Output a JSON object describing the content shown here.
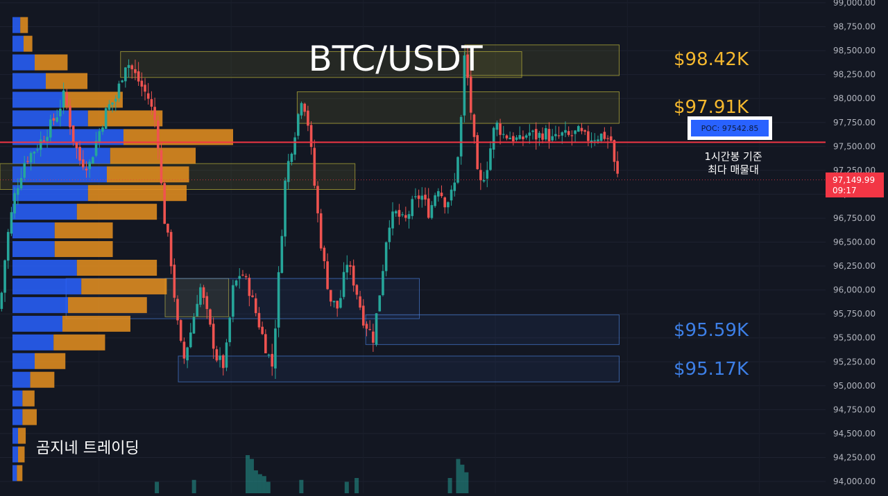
{
  "title": "BTC/USDT",
  "watermark": "곰지네 트레이딩",
  "colors": {
    "background": "#131722",
    "up": "#26a69a",
    "down": "#ef5350",
    "profile_blue": "#2962ff",
    "profile_orange": "#e8911e",
    "poc_line": "#f23645",
    "resistance_label": "#f5b82e",
    "support_label": "#3d7fe6"
  },
  "poc": {
    "label": "POC: 97542.85",
    "value": 97542.85
  },
  "note": {
    "line1": "1시간봉 기준",
    "line2": "최다 매물대"
  },
  "current_price": {
    "price": "97,149.99",
    "countdown": "09:17",
    "value": 97149.99
  },
  "level_labels": [
    {
      "text": "$98.42K",
      "value": 98420,
      "kind": "resistance"
    },
    {
      "text": "$97.91K",
      "value": 97910,
      "kind": "resistance"
    },
    {
      "text": "$95.59K",
      "value": 95590,
      "kind": "support"
    },
    {
      "text": "$95.17K",
      "value": 95170,
      "kind": "support"
    }
  ],
  "chart_data": {
    "type": "candlestick",
    "y_axis": {
      "min": 93900,
      "max": 99000,
      "ticks": [
        "99,000.00",
        "98,750.00",
        "98,500.00",
        "98,250.00",
        "98,000.00",
        "97,750.00",
        "97,500.00",
        "97,250.00",
        "97,000.00",
        "96,750.00",
        "96,500.00",
        "96,250.00",
        "96,000.00",
        "95,750.00",
        "95,500.00",
        "95,250.00",
        "95,000.00",
        "94,750.00",
        "94,500.00",
        "94,250.00",
        "94,000.00"
      ],
      "tick_values": [
        99000,
        98750,
        98500,
        98250,
        98000,
        97750,
        97500,
        97250,
        97000,
        96750,
        96500,
        96250,
        96000,
        95750,
        95500,
        95250,
        95000,
        94750,
        94500,
        94250,
        94000
      ]
    },
    "zones": [
      {
        "kind": "resistance",
        "from": 0.146,
        "to": 0.632,
        "low": 98220,
        "high": 98490
      },
      {
        "kind": "resistance",
        "from": 0.563,
        "to": 0.75,
        "low": 98240,
        "high": 98560
      },
      {
        "kind": "resistance",
        "from": 0.36,
        "to": 0.75,
        "low": 97740,
        "high": 98070
      },
      {
        "kind": "resistance",
        "from": 0.0,
        "to": 0.43,
        "low": 97050,
        "high": 97320
      },
      {
        "kind": "resistance",
        "from": 0.2,
        "to": 0.277,
        "low": 95720,
        "high": 96120
      },
      {
        "kind": "support",
        "from": 0.08,
        "to": 0.508,
        "low": 95700,
        "high": 96120
      },
      {
        "kind": "support",
        "from": 0.443,
        "to": 0.75,
        "low": 95430,
        "high": 95740
      },
      {
        "kind": "support",
        "from": 0.216,
        "to": 0.75,
        "low": 95040,
        "high": 95310
      }
    ],
    "volume_profile": [
      {
        "price": 98760,
        "blue": 0.07,
        "orange": 0.07
      },
      {
        "price": 98565,
        "blue": 0.1,
        "orange": 0.08
      },
      {
        "price": 98370,
        "blue": 0.2,
        "orange": 0.3
      },
      {
        "price": 98175,
        "blue": 0.3,
        "orange": 0.38
      },
      {
        "price": 97980,
        "blue": 0.45,
        "orange": 0.55
      },
      {
        "price": 97785,
        "blue": 0.68,
        "orange": 0.68
      },
      {
        "price": 97590,
        "blue": 1.0,
        "orange": 1.0
      },
      {
        "price": 97395,
        "blue": 0.88,
        "orange": 0.78
      },
      {
        "price": 97200,
        "blue": 0.85,
        "orange": 0.75
      },
      {
        "price": 97005,
        "blue": 0.68,
        "orange": 0.9
      },
      {
        "price": 96810,
        "blue": 0.58,
        "orange": 0.73
      },
      {
        "price": 96615,
        "blue": 0.38,
        "orange": 0.53
      },
      {
        "price": 96420,
        "blue": 0.38,
        "orange": 0.53
      },
      {
        "price": 96225,
        "blue": 0.58,
        "orange": 0.73
      },
      {
        "price": 96030,
        "blue": 0.62,
        "orange": 0.78
      },
      {
        "price": 95835,
        "blue": 0.5,
        "orange": 0.72
      },
      {
        "price": 95640,
        "blue": 0.45,
        "orange": 0.62
      },
      {
        "price": 95445,
        "blue": 0.37,
        "orange": 0.47
      },
      {
        "price": 95250,
        "blue": 0.2,
        "orange": 0.28
      },
      {
        "price": 95055,
        "blue": 0.16,
        "orange": 0.22
      },
      {
        "price": 94860,
        "blue": 0.09,
        "orange": 0.11
      },
      {
        "price": 94665,
        "blue": 0.09,
        "orange": 0.13
      },
      {
        "price": 94470,
        "blue": 0.05,
        "orange": 0.07
      },
      {
        "price": 94275,
        "blue": 0.05,
        "orange": 0.06
      },
      {
        "price": 94080,
        "blue": 0.04,
        "orange": 0.05
      }
    ],
    "anchors": [
      [
        0.0,
        95800
      ],
      [
        0.008,
        96500
      ],
      [
        0.018,
        97000
      ],
      [
        0.03,
        97350
      ],
      [
        0.045,
        97500
      ],
      [
        0.06,
        97700
      ],
      [
        0.07,
        97850
      ],
      [
        0.078,
        98050
      ],
      [
        0.088,
        97600
      ],
      [
        0.097,
        97350
      ],
      [
        0.108,
        97300
      ],
      [
        0.118,
        97600
      ],
      [
        0.13,
        97900
      ],
      [
        0.14,
        98000
      ],
      [
        0.153,
        98400
      ],
      [
        0.16,
        98300
      ],
      [
        0.17,
        98150
      ],
      [
        0.18,
        98000
      ],
      [
        0.19,
        97700
      ],
      [
        0.198,
        96800
      ],
      [
        0.206,
        96400
      ],
      [
        0.214,
        95700
      ],
      [
        0.222,
        95250
      ],
      [
        0.232,
        95600
      ],
      [
        0.242,
        96050
      ],
      [
        0.252,
        95700
      ],
      [
        0.262,
        95300
      ],
      [
        0.272,
        95200
      ],
      [
        0.282,
        96000
      ],
      [
        0.292,
        96200
      ],
      [
        0.302,
        96000
      ],
      [
        0.312,
        95700
      ],
      [
        0.322,
        95400
      ],
      [
        0.33,
        95200
      ],
      [
        0.338,
        96200
      ],
      [
        0.346,
        97200
      ],
      [
        0.356,
        97600
      ],
      [
        0.366,
        98050
      ],
      [
        0.374,
        97700
      ],
      [
        0.382,
        97000
      ],
      [
        0.39,
        96400
      ],
      [
        0.4,
        95900
      ],
      [
        0.41,
        95800
      ],
      [
        0.42,
        96300
      ],
      [
        0.43,
        96050
      ],
      [
        0.44,
        95700
      ],
      [
        0.452,
        95500
      ],
      [
        0.462,
        96100
      ],
      [
        0.47,
        96700
      ],
      [
        0.48,
        96800
      ],
      [
        0.49,
        96700
      ],
      [
        0.5,
        96900
      ],
      [
        0.51,
        97000
      ],
      [
        0.52,
        96800
      ],
      [
        0.53,
        97100
      ],
      [
        0.54,
        96900
      ],
      [
        0.55,
        97050
      ],
      [
        0.558,
        97700
      ],
      [
        0.563,
        98500
      ],
      [
        0.57,
        97900
      ],
      [
        0.58,
        97050
      ],
      [
        0.59,
        97300
      ],
      [
        0.6,
        97750
      ],
      [
        0.61,
        97620
      ],
      [
        0.62,
        97600
      ],
      [
        0.63,
        97550
      ],
      [
        0.64,
        97650
      ],
      [
        0.65,
        97600
      ],
      [
        0.66,
        97650
      ],
      [
        0.67,
        97560
      ],
      [
        0.68,
        97620
      ],
      [
        0.69,
        97600
      ],
      [
        0.7,
        97650
      ],
      [
        0.71,
        97580
      ],
      [
        0.72,
        97600
      ],
      [
        0.73,
        97620
      ],
      [
        0.74,
        97570
      ],
      [
        0.745,
        97250
      ],
      [
        0.75,
        97150
      ]
    ],
    "volume_bars": [
      {
        "x": 0.19,
        "v": 0.3
      },
      {
        "x": 0.235,
        "v": 0.35
      },
      {
        "x": 0.3,
        "v": 1.0
      },
      {
        "x": 0.305,
        "v": 0.9
      },
      {
        "x": 0.31,
        "v": 0.6
      },
      {
        "x": 0.315,
        "v": 0.5
      },
      {
        "x": 0.32,
        "v": 0.45
      },
      {
        "x": 0.325,
        "v": 0.3
      },
      {
        "x": 0.365,
        "v": 0.35
      },
      {
        "x": 0.42,
        "v": 0.3
      },
      {
        "x": 0.432,
        "v": 0.4
      },
      {
        "x": 0.545,
        "v": 0.4
      },
      {
        "x": 0.555,
        "v": 0.9
      },
      {
        "x": 0.56,
        "v": 0.75
      },
      {
        "x": 0.565,
        "v": 0.55
      }
    ]
  }
}
